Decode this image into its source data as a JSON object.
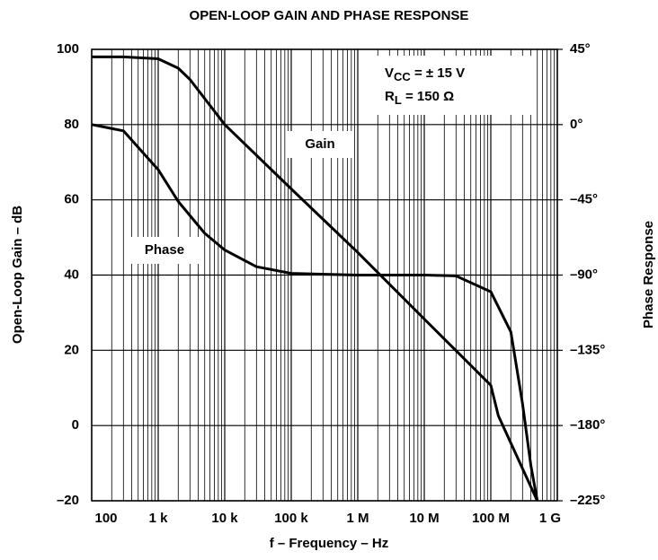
{
  "chart_data": {
    "type": "line",
    "title": "OPEN-LOOP GAIN AND PHASE RESPONSE",
    "x_label": "f – Frequency – Hz",
    "y_label": "Open-Loop Gain – dB",
    "y2_label": "Phase Response",
    "x_scale": "log",
    "xlim": [
      100,
      1000000000
    ],
    "xticks": [
      100,
      {
        "value": 1000,
        "label": "1 k"
      },
      {
        "value": 10000,
        "label": "10 k"
      },
      {
        "value": 100000,
        "label": "100 k"
      },
      {
        "value": 1000000,
        "label": "1 M"
      },
      {
        "value": 10000000,
        "label": "10 M"
      },
      {
        "value": 100000000,
        "label": "100 M"
      },
      {
        "value": 1000000000,
        "label": "1 G"
      }
    ],
    "ylim": [
      -20,
      100
    ],
    "yticks": [
      {
        "value": -20,
        "label": "–20"
      },
      0,
      20,
      40,
      60,
      80,
      100
    ],
    "y2lim": [
      -225,
      45
    ],
    "y2ticks": [
      {
        "value": -225,
        "label": "–225°"
      },
      {
        "value": -180,
        "label": "–180°"
      },
      {
        "value": -135,
        "label": "–135°"
      },
      {
        "value": -90,
        "label": "–90°"
      },
      {
        "value": -45,
        "label": "–45°"
      },
      {
        "value": 0,
        "label": "0°"
      },
      {
        "value": 45,
        "label": "45°"
      }
    ],
    "grid": true,
    "minor_grid": true,
    "series": [
      {
        "name": "Gain",
        "color": "#000000",
        "x": [
          100,
          300,
          1000,
          2000,
          3000,
          10000,
          100000,
          1000000,
          10000000,
          100000000,
          130000000,
          500000000
        ],
        "values": [
          98,
          98,
          97.5,
          95,
          92,
          80,
          62.9,
          46,
          28.3,
          10.7,
          2.6,
          -20
        ]
      },
      {
        "name": "Phase",
        "color": "#000000",
        "axis": "y2",
        "x": [
          100,
          300,
          1000,
          2000,
          5000,
          10000,
          30000,
          100000,
          1000000,
          10000000,
          30000000,
          100000000,
          200000000,
          300000000,
          400000000,
          500000000
        ],
        "values": [
          0,
          -3.75,
          -27,
          -46,
          -65,
          -75,
          -85,
          -89,
          -90,
          -90,
          -90.5,
          -100,
          -124,
          -167,
          -204,
          -225
        ]
      }
    ],
    "conditions": [
      [
        "V",
        "CC",
        " = ± 15 V"
      ],
      [
        "R",
        "L",
        " = 150 Ω"
      ]
    ]
  }
}
